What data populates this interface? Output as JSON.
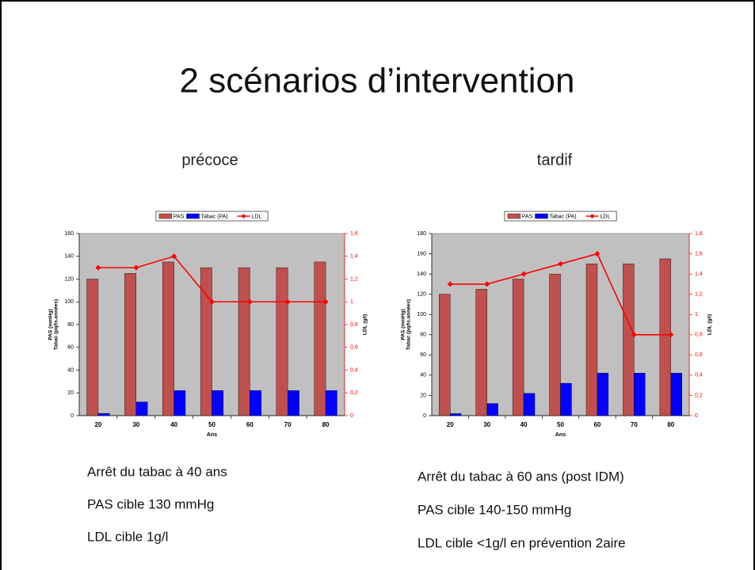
{
  "title": "2 scénarios d’intervention",
  "chart_data": [
    {
      "type": "bar",
      "subtitle": "précoce",
      "categories": [
        "20",
        "30",
        "40",
        "50",
        "60",
        "70",
        "80"
      ],
      "series": [
        {
          "name": "PAS",
          "color": "#c0504d",
          "values": [
            120,
            125,
            135,
            130,
            130,
            130,
            135
          ]
        },
        {
          "name": "Tabac (PA)",
          "color": "#0000ff",
          "values": [
            2,
            12,
            22,
            22,
            22,
            22,
            22
          ]
        },
        {
          "name": "LDL",
          "color": "#ff0000",
          "type": "line",
          "axis": "y2",
          "values": [
            1.3,
            1.3,
            1.4,
            1,
            1,
            1,
            1
          ]
        }
      ],
      "ylabel": [
        "PAS (mmHg)",
        "Tabac (pq/ts.années)"
      ],
      "y2label": "LDL (g/l)",
      "xlabel": "Ans",
      "ylim": [
        0,
        160
      ],
      "yticks": [
        0,
        20,
        40,
        60,
        80,
        100,
        120,
        140,
        160
      ],
      "y2lim": [
        0,
        1.6
      ],
      "y2ticks": [
        0,
        {
          "value": 0.2,
          "label": "0,2"
        },
        {
          "value": 0.4,
          "label": "0,4"
        },
        {
          "value": 0.6,
          "label": "0,6"
        },
        {
          "value": 0.8,
          "label": "0,8"
        },
        1,
        {
          "value": 1.2,
          "label": "1,2"
        },
        {
          "value": 1.4,
          "label": "1,4"
        },
        {
          "value": 1.6,
          "label": "1,6"
        }
      ],
      "legend": "top",
      "notes": [
        "Arrêt du tabac à 40 ans",
        "PAS cible 130 mmHg",
        "LDL cible 1g/l"
      ]
    },
    {
      "type": "bar",
      "subtitle": "tardif",
      "categories": [
        "20",
        "30",
        "40",
        "50",
        "60",
        "70",
        "80"
      ],
      "series": [
        {
          "name": "PAS",
          "color": "#c0504d",
          "values": [
            120,
            125,
            135,
            140,
            150,
            150,
            155
          ]
        },
        {
          "name": "Tabac (PA)",
          "color": "#0000ff",
          "values": [
            2,
            12,
            22,
            32,
            42,
            42,
            42
          ]
        },
        {
          "name": "LDL",
          "color": "#ff0000",
          "type": "line",
          "axis": "y2",
          "values": [
            1.3,
            1.3,
            1.4,
            1.5,
            1.6,
            0.8,
            0.8
          ]
        }
      ],
      "ylabel": [
        "PAS (mmHg)",
        "Tabac (pq/ts.années)"
      ],
      "y2label": "LDL (g/l)",
      "xlabel": "Ans",
      "ylim": [
        0,
        180
      ],
      "yticks": [
        0,
        20,
        40,
        60,
        80,
        100,
        120,
        140,
        160,
        180
      ],
      "y2lim": [
        0,
        1.8
      ],
      "y2ticks": [
        0,
        {
          "value": 0.2,
          "label": "0,2"
        },
        {
          "value": 0.4,
          "label": "0,4"
        },
        {
          "value": 0.6,
          "label": "0,6"
        },
        {
          "value": 0.8,
          "label": "0,8"
        },
        1,
        {
          "value": 1.2,
          "label": "1,2"
        },
        {
          "value": 1.4,
          "label": "1,4"
        },
        {
          "value": 1.6,
          "label": "1,6"
        },
        {
          "value": 1.8,
          "label": "1,8"
        }
      ],
      "legend": "top",
      "notes": [
        "Arrêt du tabac à 60 ans (post IDM)",
        "PAS cible 140-150 mmHg",
        "LDL cible <1g/l en prévention 2aire"
      ]
    }
  ]
}
